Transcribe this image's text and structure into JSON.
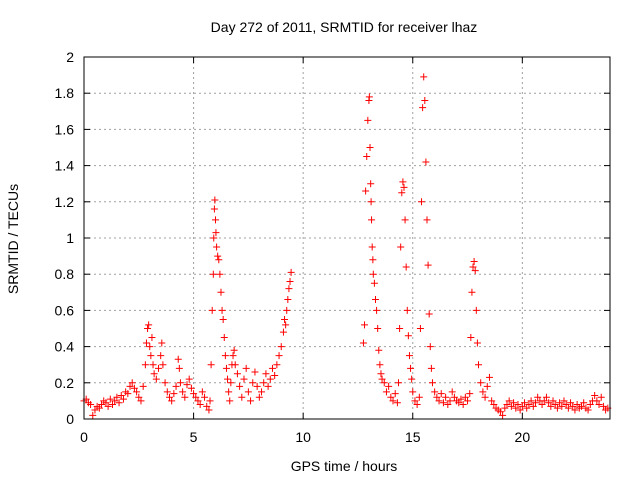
{
  "chart_data": {
    "type": "scatter",
    "title": "Day 272 of 2011, SRMTID for receiver lhaz",
    "xlabel": "GPS time / hours",
    "ylabel": "SRMTID / TECUs",
    "xlim": [
      0,
      24
    ],
    "ylim": [
      0,
      2
    ],
    "xticks": [
      0,
      5,
      10,
      15,
      20
    ],
    "yticks": [
      0,
      0.2,
      0.4,
      0.6,
      0.8,
      1,
      1.2,
      1.4,
      1.6,
      1.8,
      2
    ],
    "grid": true,
    "marker": "plus",
    "color": "#ff0000",
    "series": [
      {
        "points": [
          [
            0.0,
            0.1
          ],
          [
            0.1,
            0.11
          ],
          [
            0.2,
            0.09
          ],
          [
            0.3,
            0.08
          ],
          [
            0.4,
            0.02
          ],
          [
            0.5,
            0.05
          ],
          [
            0.6,
            0.07
          ],
          [
            0.7,
            0.06
          ],
          [
            0.8,
            0.08
          ],
          [
            0.9,
            0.1
          ],
          [
            1.0,
            0.09
          ],
          [
            1.1,
            0.07
          ],
          [
            1.2,
            0.11
          ],
          [
            1.3,
            0.08
          ],
          [
            1.4,
            0.1
          ],
          [
            1.5,
            0.12
          ],
          [
            1.6,
            0.09
          ],
          [
            1.7,
            0.13
          ],
          [
            1.8,
            0.11
          ],
          [
            1.9,
            0.15
          ],
          [
            2.0,
            0.14
          ],
          [
            2.1,
            0.18
          ],
          [
            2.2,
            0.2
          ],
          [
            2.3,
            0.17
          ],
          [
            2.4,
            0.15
          ],
          [
            2.5,
            0.12
          ],
          [
            2.6,
            0.1
          ],
          [
            2.7,
            0.18
          ],
          [
            2.8,
            0.3
          ],
          [
            2.85,
            0.42
          ],
          [
            2.9,
            0.5
          ],
          [
            2.95,
            0.52
          ],
          [
            3.0,
            0.4
          ],
          [
            3.05,
            0.35
          ],
          [
            3.1,
            0.45
          ],
          [
            3.15,
            0.3
          ],
          [
            3.2,
            0.25
          ],
          [
            3.3,
            0.22
          ],
          [
            3.4,
            0.28
          ],
          [
            3.5,
            0.35
          ],
          [
            3.55,
            0.42
          ],
          [
            3.6,
            0.3
          ],
          [
            3.7,
            0.2
          ],
          [
            3.8,
            0.15
          ],
          [
            3.9,
            0.12
          ],
          [
            4.0,
            0.1
          ],
          [
            4.1,
            0.14
          ],
          [
            4.2,
            0.18
          ],
          [
            4.3,
            0.33
          ],
          [
            4.35,
            0.28
          ],
          [
            4.4,
            0.2
          ],
          [
            4.5,
            0.15
          ],
          [
            4.6,
            0.12
          ],
          [
            4.7,
            0.19
          ],
          [
            4.8,
            0.22
          ],
          [
            4.9,
            0.17
          ],
          [
            5.0,
            0.14
          ],
          [
            5.1,
            0.12
          ],
          [
            5.2,
            0.1
          ],
          [
            5.3,
            0.08
          ],
          [
            5.4,
            0.15
          ],
          [
            5.5,
            0.12
          ],
          [
            5.6,
            0.07
          ],
          [
            5.7,
            0.05
          ],
          [
            5.75,
            0.1
          ],
          [
            5.8,
            0.3
          ],
          [
            5.85,
            0.6
          ],
          [
            5.9,
            0.8
          ],
          [
            5.92,
            1.0
          ],
          [
            5.95,
            1.16
          ],
          [
            5.97,
            1.21
          ],
          [
            6.0,
            1.1
          ],
          [
            6.02,
            1.03
          ],
          [
            6.05,
            0.95
          ],
          [
            6.1,
            0.9
          ],
          [
            6.15,
            0.88
          ],
          [
            6.2,
            0.8
          ],
          [
            6.25,
            0.7
          ],
          [
            6.3,
            0.6
          ],
          [
            6.35,
            0.55
          ],
          [
            6.4,
            0.45
          ],
          [
            6.45,
            0.35
          ],
          [
            6.5,
            0.28
          ],
          [
            6.55,
            0.22
          ],
          [
            6.6,
            0.15
          ],
          [
            6.65,
            0.1
          ],
          [
            6.7,
            0.2
          ],
          [
            6.75,
            0.3
          ],
          [
            6.8,
            0.35
          ],
          [
            6.85,
            0.38
          ],
          [
            6.9,
            0.3
          ],
          [
            7.0,
            0.25
          ],
          [
            7.1,
            0.18
          ],
          [
            7.2,
            0.12
          ],
          [
            7.3,
            0.22
          ],
          [
            7.4,
            0.28
          ],
          [
            7.5,
            0.15
          ],
          [
            7.6,
            0.1
          ],
          [
            7.7,
            0.2
          ],
          [
            7.8,
            0.26
          ],
          [
            7.9,
            0.18
          ],
          [
            8.0,
            0.12
          ],
          [
            8.1,
            0.15
          ],
          [
            8.2,
            0.2
          ],
          [
            8.3,
            0.25
          ],
          [
            8.4,
            0.18
          ],
          [
            8.5,
            0.22
          ],
          [
            8.6,
            0.28
          ],
          [
            8.7,
            0.24
          ],
          [
            8.8,
            0.3
          ],
          [
            8.9,
            0.35
          ],
          [
            9.0,
            0.4
          ],
          [
            9.1,
            0.48
          ],
          [
            9.15,
            0.55
          ],
          [
            9.2,
            0.52
          ],
          [
            9.25,
            0.6
          ],
          [
            9.3,
            0.66
          ],
          [
            9.35,
            0.72
          ],
          [
            9.4,
            0.76
          ],
          [
            9.45,
            0.81
          ],
          [
            12.75,
            0.42
          ],
          [
            12.8,
            0.52
          ],
          [
            12.85,
            1.26
          ],
          [
            12.9,
            1.45
          ],
          [
            12.95,
            1.65
          ],
          [
            13.0,
            1.76
          ],
          [
            13.02,
            1.78
          ],
          [
            13.05,
            1.5
          ],
          [
            13.08,
            1.3
          ],
          [
            13.1,
            1.2
          ],
          [
            13.12,
            1.1
          ],
          [
            13.15,
            0.95
          ],
          [
            13.18,
            0.88
          ],
          [
            13.2,
            0.8
          ],
          [
            13.25,
            0.75
          ],
          [
            13.3,
            0.66
          ],
          [
            13.35,
            0.6
          ],
          [
            13.4,
            0.5
          ],
          [
            13.45,
            0.38
          ],
          [
            13.5,
            0.3
          ],
          [
            13.55,
            0.25
          ],
          [
            13.6,
            0.22
          ],
          [
            13.7,
            0.2
          ],
          [
            13.8,
            0.15
          ],
          [
            13.9,
            0.18
          ],
          [
            14.0,
            0.12
          ],
          [
            14.1,
            0.1
          ],
          [
            14.2,
            0.14
          ],
          [
            14.3,
            0.09
          ],
          [
            14.35,
            0.2
          ],
          [
            14.4,
            0.5
          ],
          [
            14.45,
            0.95
          ],
          [
            14.5,
            1.25
          ],
          [
            14.55,
            1.31
          ],
          [
            14.6,
            1.28
          ],
          [
            14.65,
            1.1
          ],
          [
            14.7,
            0.84
          ],
          [
            14.75,
            0.6
          ],
          [
            14.8,
            0.46
          ],
          [
            14.85,
            0.35
          ],
          [
            14.9,
            0.28
          ],
          [
            14.95,
            0.22
          ],
          [
            15.0,
            0.15
          ],
          [
            15.1,
            0.1
          ],
          [
            15.2,
            0.08
          ],
          [
            15.3,
            0.12
          ],
          [
            15.35,
            0.5
          ],
          [
            15.4,
            1.2
          ],
          [
            15.45,
            1.72
          ],
          [
            15.5,
            1.89
          ],
          [
            15.55,
            1.76
          ],
          [
            15.6,
            1.42
          ],
          [
            15.65,
            1.1
          ],
          [
            15.7,
            0.85
          ],
          [
            15.75,
            0.58
          ],
          [
            15.8,
            0.4
          ],
          [
            15.85,
            0.28
          ],
          [
            15.9,
            0.2
          ],
          [
            16.0,
            0.15
          ],
          [
            16.1,
            0.12
          ],
          [
            16.2,
            0.1
          ],
          [
            16.3,
            0.14
          ],
          [
            16.4,
            0.09
          ],
          [
            16.5,
            0.12
          ],
          [
            16.6,
            0.08
          ],
          [
            16.7,
            0.1
          ],
          [
            16.8,
            0.15
          ],
          [
            16.9,
            0.12
          ],
          [
            17.0,
            0.1
          ],
          [
            17.1,
            0.09
          ],
          [
            17.2,
            0.11
          ],
          [
            17.3,
            0.08
          ],
          [
            17.4,
            0.12
          ],
          [
            17.5,
            0.1
          ],
          [
            17.6,
            0.14
          ],
          [
            17.65,
            0.45
          ],
          [
            17.7,
            0.7
          ],
          [
            17.75,
            0.84
          ],
          [
            17.8,
            0.87
          ],
          [
            17.85,
            0.82
          ],
          [
            17.9,
            0.6
          ],
          [
            17.95,
            0.42
          ],
          [
            18.0,
            0.3
          ],
          [
            18.1,
            0.2
          ],
          [
            18.2,
            0.15
          ],
          [
            18.3,
            0.12
          ],
          [
            18.4,
            0.18
          ],
          [
            18.5,
            0.23
          ],
          [
            18.6,
            0.1
          ],
          [
            18.7,
            0.08
          ],
          [
            18.8,
            0.06
          ],
          [
            18.9,
            0.05
          ],
          [
            19.0,
            0.04
          ],
          [
            19.1,
            0.02
          ],
          [
            19.2,
            0.06
          ],
          [
            19.3,
            0.08
          ],
          [
            19.4,
            0.1
          ],
          [
            19.5,
            0.07
          ],
          [
            19.6,
            0.09
          ],
          [
            19.7,
            0.06
          ],
          [
            19.8,
            0.08
          ],
          [
            19.9,
            0.05
          ],
          [
            20.0,
            0.07
          ],
          [
            20.1,
            0.09
          ],
          [
            20.2,
            0.06
          ],
          [
            20.3,
            0.08
          ],
          [
            20.4,
            0.1
          ],
          [
            20.5,
            0.07
          ],
          [
            20.6,
            0.09
          ],
          [
            20.7,
            0.12
          ],
          [
            20.8,
            0.1
          ],
          [
            20.9,
            0.08
          ],
          [
            21.0,
            0.1
          ],
          [
            21.1,
            0.12
          ],
          [
            21.2,
            0.09
          ],
          [
            21.3,
            0.07
          ],
          [
            21.4,
            0.1
          ],
          [
            21.5,
            0.08
          ],
          [
            21.6,
            0.06
          ],
          [
            21.7,
            0.09
          ],
          [
            21.8,
            0.07
          ],
          [
            21.9,
            0.1
          ],
          [
            22.0,
            0.08
          ],
          [
            22.1,
            0.06
          ],
          [
            22.2,
            0.09
          ],
          [
            22.3,
            0.07
          ],
          [
            22.4,
            0.05
          ],
          [
            22.5,
            0.08
          ],
          [
            22.6,
            0.06
          ],
          [
            22.7,
            0.07
          ],
          [
            22.8,
            0.09
          ],
          [
            22.9,
            0.06
          ],
          [
            23.0,
            0.05
          ],
          [
            23.1,
            0.08
          ],
          [
            23.2,
            0.1
          ],
          [
            23.3,
            0.13
          ],
          [
            23.4,
            0.1
          ],
          [
            23.5,
            0.08
          ],
          [
            23.6,
            0.12
          ],
          [
            23.7,
            0.07
          ],
          [
            23.8,
            0.05
          ],
          [
            23.9,
            0.06
          ]
        ]
      }
    ]
  }
}
